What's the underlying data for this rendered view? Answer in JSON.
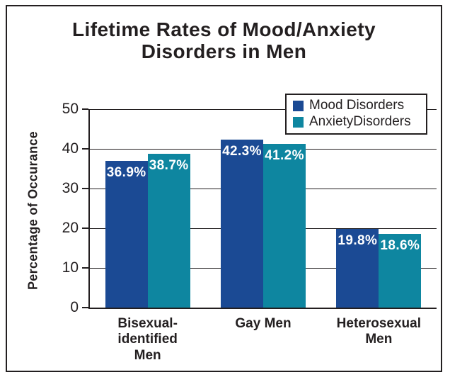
{
  "chart": {
    "title_display": "Lifetime Rates of Mood/Anxiety\nDisorders in Men"
  },
  "chart_data": {
    "type": "bar",
    "title": "Lifetime Rates of Mood/Anxiety Disorders in Men",
    "xlabel": "",
    "ylabel": "Percentage of Occurance",
    "ylim": [
      0,
      50
    ],
    "yticks": [
      0,
      10,
      20,
      30,
      40,
      50
    ],
    "grid": "horizontal gridlines on",
    "legend_position": "top-right inside plot, boxed",
    "categories": [
      "Bisexual-identified Men",
      "Gay Men",
      "Heterosexual Men"
    ],
    "category_display_labels": [
      "Bisexual-\nidentified\nMen",
      "Gay Men",
      "Heterosexual\nMen"
    ],
    "series": [
      {
        "name": "Mood Disorders",
        "color": "#1b4a94",
        "values": [
          36.9,
          42.3,
          19.8
        ],
        "bar_labels": [
          "36.9%",
          "42.3%",
          "19.8%"
        ]
      },
      {
        "name": "AnxietyDisorders",
        "color": "#0e86a0",
        "values": [
          38.7,
          41.2,
          18.6
        ],
        "bar_labels": [
          "38.7%",
          "41.2%",
          "18.6%"
        ]
      }
    ],
    "colors": {
      "text": "#231f20",
      "axis_and_grid": "#231f20",
      "frame_border": "#231f20",
      "bar_label_text": "#ffffff",
      "background": "#ffffff"
    }
  }
}
